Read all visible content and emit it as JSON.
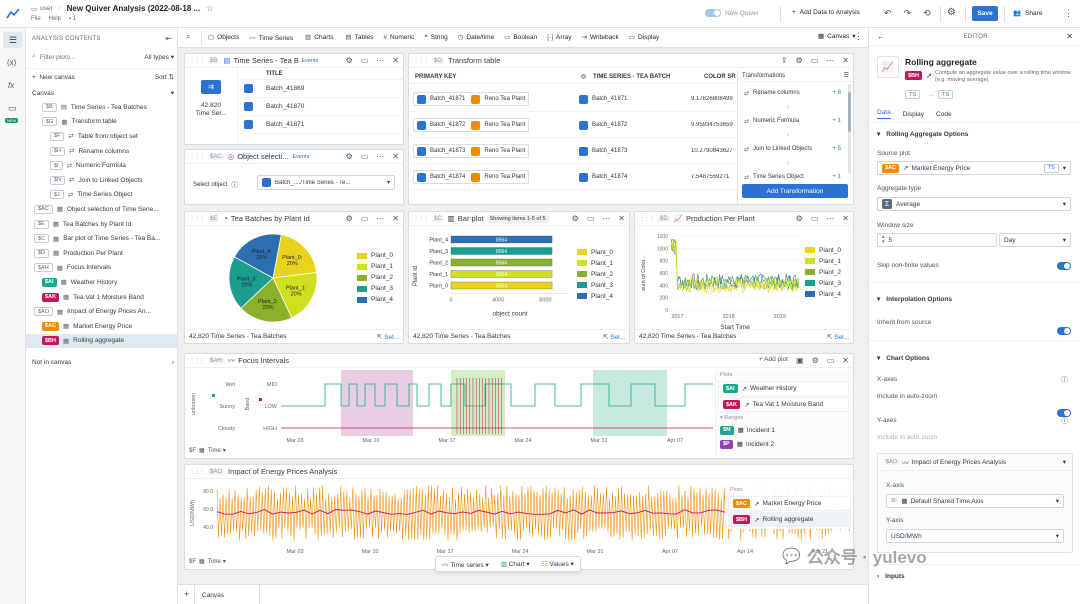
{
  "topbar": {
    "user": "user",
    "title": "New Quiver Analysis (2022-08-18 ...",
    "file_menu": "File",
    "help_menu": "Help",
    "count": "1",
    "new_quiver_label": "New Quiver",
    "add_data_label": "Add Data to Analysis",
    "save_label": "Save",
    "share_label": "Share"
  },
  "sidebar": {
    "title": "ANALYSIS CONTENTS",
    "filter_placeholder": "Filter plots...",
    "all_types": "All types",
    "new_canvas": "New canvas",
    "sort": "Sort",
    "canvas_section": "Canvas",
    "not_in_canvas": "Not in canvas",
    "items": [
      {
        "id": "$B",
        "label": "Time Series - Tea Batches",
        "indent": 1
      },
      {
        "id": "$G",
        "label": "Transform table",
        "indent": 1
      },
      {
        "id": "$F",
        "label": "Table from object set",
        "indent": 2
      },
      {
        "id": "$H",
        "label": "Rename columns",
        "indent": 2
      },
      {
        "id": "$I",
        "label": "Numeric Formula",
        "indent": 2
      },
      {
        "id": "$N",
        "label": "Join to Linked Objects",
        "indent": 2
      },
      {
        "id": "$J",
        "label": "Time Series Object",
        "indent": 2
      },
      {
        "id": "$AC",
        "label": "Object selection of Time Serie...",
        "indent": 0
      },
      {
        "id": "$E",
        "label": "Tea Batches by Plant Id",
        "indent": 0
      },
      {
        "id": "$C",
        "label": "Bar plot of Time Series - Tea Ba...",
        "indent": 0
      },
      {
        "id": "$D",
        "label": "Production Per Plant",
        "indent": 0
      },
      {
        "id": "$AH",
        "label": "Focus Intervals",
        "indent": 0
      },
      {
        "id": "$AI",
        "label": "Weather History",
        "indent": 1
      },
      {
        "id": "$AK",
        "label": "Tea Vat 1 Moisture Band",
        "indent": 1
      },
      {
        "id": "$AO",
        "label": "Impact of Energy Prices An...",
        "indent": 0
      },
      {
        "id": "$AC",
        "label": "Market Energy Price",
        "indent": 1
      },
      {
        "id": "$BH",
        "label": "Rolling aggregate",
        "indent": 1
      }
    ]
  },
  "toolbar": {
    "items": [
      "Objects",
      "Time Series",
      "Charts",
      "Tables",
      "Numeric",
      "String",
      "Date/time",
      "Boolean",
      "Array",
      "Writeback",
      "Display"
    ],
    "canvas_label": "Canvas"
  },
  "panels": {
    "ts_tea": {
      "id": "$B",
      "title": "Time Series - Tea B",
      "events": "Events",
      "count": "42,820",
      "count_label": "Time Ser...",
      "col": "TITLE",
      "rows": [
        "Batch_41869",
        "Batch_41870",
        "Batch_41871"
      ]
    },
    "obj_sel": {
      "id": "$AC",
      "title": "Object selecti...",
      "events": "Events",
      "select_label": "Select object",
      "value": "Batch_..../Time Series - Te..."
    },
    "transform": {
      "id": "$G",
      "title": "Transform table",
      "headers": [
        "PRIMARY KEY",
        "TIME SERIES - TEA BATCH",
        "COLOR SR"
      ],
      "rows": [
        {
          "key": "Batch_41871",
          "plant": "Reno Tea Plant",
          "batch": "Batch_41871",
          "value": "9.17826808499"
        },
        {
          "key": "Batch_41872",
          "plant": "Reno Tea Plant",
          "batch": "Batch_41872",
          "value": "9.95934753659"
        },
        {
          "key": "Batch_41873",
          "plant": "Reno Tea Plant",
          "batch": "Batch_41873",
          "value": "10.2790843627"
        },
        {
          "key": "Batch_41874",
          "plant": "Reno Tea Plant",
          "batch": "Batch_41874",
          "value": "7.5487559271"
        }
      ],
      "transformations_title": "Transformations",
      "steps": [
        {
          "label": "Rename columns",
          "badge": "+ 8"
        },
        {
          "label": "Numeric Formula",
          "badge": "+ 1"
        },
        {
          "label": "Join to Linked Objects",
          "badge": "+ 5"
        },
        {
          "label": "Time Series Object",
          "badge": "+ 1"
        }
      ],
      "add_label": "Add Transformation"
    },
    "pie": {
      "id": "$E",
      "title": "Tea Batches by Plant Id",
      "footer": "42,820 Time Series - Tea Batches",
      "select": "Sel..."
    },
    "bar": {
      "id": "$C",
      "title": "Bar plot",
      "showing": "Showing items 1-5 of 5",
      "footer": "42,820 Time Series - Tea Batches",
      "select": "Sel..."
    },
    "production": {
      "id": "$D",
      "title": "Production Per Plant",
      "footer": "42,820 Time Series - Tea Batches",
      "select": "Sel..."
    },
    "focus": {
      "id": "$AH",
      "title": "Focus Intervals",
      "add_plot": "Add plot",
      "plots_label": "Plots",
      "ranges_label": "Ranges",
      "plots": [
        {
          "id": "$AI",
          "label": "Weather History",
          "color": "#19a88b"
        },
        {
          "id": "$AK",
          "label": "Tea Vat 1 Moisture Band",
          "color": "#c2185b"
        }
      ],
      "ranges": [
        {
          "id": "$M",
          "label": "Incident 1",
          "color": "#19a88b"
        },
        {
          "id": "$P",
          "label": "Incident 2",
          "color": "#8e44ad"
        }
      ],
      "ylabels": [
        "Wet",
        "Sunny",
        "Cloudy"
      ],
      "ylabels2": [
        "MID",
        "LOW",
        "HIGH"
      ],
      "yaxis1": "unknown",
      "yaxis2": "Band",
      "xticks": [
        "Mar 03",
        "Mar 10",
        "Mar 17",
        "Mar 24",
        "Mar 31",
        "Apr 07"
      ],
      "time_label": "Time",
      "axis_id": "$F"
    },
    "energy": {
      "id": "$AO",
      "title": "Impact of Energy Prices Analysis",
      "plots_label": "Plots",
      "plots": [
        {
          "id": "$AC",
          "label": "Market Energy Price",
          "color": "#f08c00"
        },
        {
          "id": "$BH",
          "label": "Rolling aggregate",
          "color": "#c2185b"
        }
      ],
      "yaxis": "USD/MWh",
      "yticks": [
        "80.0",
        "60.0",
        "40.0"
      ],
      "xticks": [
        "Mar 03",
        "Mar 10",
        "Mar 17",
        "Mar 24",
        "Mar 31",
        "Apr 07",
        "Apr 14",
        "Apr 21"
      ],
      "time_label": "Time",
      "axis_id": "$F"
    }
  },
  "chart_data": [
    {
      "type": "pie",
      "title": "Tea Batches by Plant Id",
      "categories": [
        "Plant_0",
        "Plant_1",
        "Plant_2",
        "Plant_3",
        "Plant_4"
      ],
      "values": [
        20,
        20,
        20,
        20,
        20
      ],
      "labels": [
        "Plant_0:\n20%",
        "Plant_1:\n20%",
        "Plant_2:\n20%",
        "Plant_3:\n20%",
        "Plant_4:\n20%"
      ],
      "colors": [
        "#e9d31f",
        "#d0e020",
        "#8bb02c",
        "#1b9e8f",
        "#2c6fb0"
      ]
    },
    {
      "type": "bar",
      "title": "Bar plot",
      "categories": [
        "Plant_4",
        "Plant_3",
        "Plant_2",
        "Plant_1",
        "Plant_0"
      ],
      "values": [
        8564,
        8564,
        8564,
        8564,
        8564
      ],
      "value_label": "8564",
      "xlabel": "object count",
      "ylabel": "Plant Id",
      "xticks": [
        "0",
        "4000",
        "8000"
      ],
      "xlim": [
        0,
        10000
      ],
      "colors": [
        "#2c6fb0",
        "#1b9e8f",
        "#8bb02c",
        "#d0e020",
        "#e9d31f"
      ],
      "legend": [
        "Plant_0",
        "Plant_1",
        "Plant_2",
        "Plant_3",
        "Plant_4"
      ]
    },
    {
      "type": "line",
      "title": "Production Per Plant",
      "xlabel": "Start Time",
      "ylabel": "sum of Color...",
      "yticks": [
        "1200",
        "1000",
        "800",
        "600",
        "400",
        "200",
        "0"
      ],
      "xticks": [
        "2017",
        "2018",
        "2019"
      ],
      "ylim": [
        0,
        1200
      ],
      "legend": [
        "Plant_0",
        "Plant_1",
        "Plant_2",
        "Plant_3",
        "Plant_4"
      ],
      "colors": [
        "#e9d31f",
        "#d0e020",
        "#8bb02c",
        "#1b9e8f",
        "#2c6fb0"
      ]
    }
  ],
  "editor": {
    "title": "EDITOR",
    "plot_title": "Rolling aggregate",
    "plot_id": "$BH",
    "description": "Compute an aggregate value over a rolling time window (e.g. moving average)",
    "tags": [
      "TS",
      "TS"
    ],
    "tabs": [
      "Data",
      "Display",
      "Code"
    ],
    "section1": "Rolling Aggregate Options",
    "source_label": "Source plot",
    "source_id": "$AC",
    "source_value": "Market Energy Price",
    "source_tag": "TS",
    "agg_label": "Aggregate type",
    "agg_value": "Average",
    "window_label": "Window size",
    "window_value": "5",
    "window_unit": "Day",
    "skip_label": "Skip non-finite values",
    "section2": "Interpolation Options",
    "inherit_label": "Inherit from source",
    "section3": "Chart Options",
    "xaxes_label": "X-axes",
    "x_zoom_label": "Include in auto-zoom",
    "yaxes_label": "Y-axes",
    "y_zoom_label": "Include in auto-zoom",
    "group_id": "$AO",
    "group_title": "Impact of Energy Prices Analysis",
    "xaxis_label": "X-axis",
    "xaxis_id": "$F",
    "xaxis_value": "Default Shared Time Axis",
    "yaxis_label": "Y-axis",
    "yaxis_value": "USD/MWh",
    "section4": "Inputs"
  },
  "bottom": {
    "canvas_tab": "Canvas",
    "float_btns": [
      "Time series",
      "Chart",
      "Values"
    ]
  },
  "watermark": "公众号 · yulevo"
}
